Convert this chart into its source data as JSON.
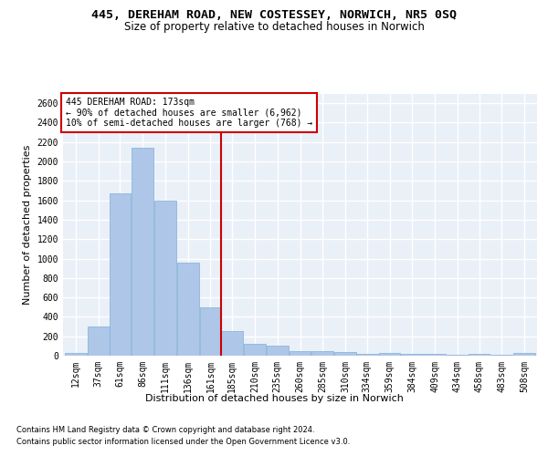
{
  "title1": "445, DEREHAM ROAD, NEW COSTESSEY, NORWICH, NR5 0SQ",
  "title2": "Size of property relative to detached houses in Norwich",
  "xlabel": "Distribution of detached houses by size in Norwich",
  "ylabel": "Number of detached properties",
  "footer1": "Contains HM Land Registry data © Crown copyright and database right 2024.",
  "footer2": "Contains public sector information licensed under the Open Government Licence v3.0.",
  "bin_labels": [
    "12sqm",
    "37sqm",
    "61sqm",
    "86sqm",
    "111sqm",
    "136sqm",
    "161sqm",
    "185sqm",
    "210sqm",
    "235sqm",
    "260sqm",
    "285sqm",
    "310sqm",
    "334sqm",
    "359sqm",
    "384sqm",
    "409sqm",
    "434sqm",
    "458sqm",
    "483sqm",
    "508sqm"
  ],
  "bar_values": [
    25,
    300,
    1670,
    2140,
    1600,
    960,
    500,
    250,
    125,
    100,
    50,
    50,
    35,
    20,
    30,
    15,
    20,
    5,
    20,
    5,
    25
  ],
  "bar_color": "#aec6e8",
  "bar_edge_color": "#7fafd4",
  "annotation_box_text": "445 DEREHAM ROAD: 173sqm\n← 90% of detached houses are smaller (6,962)\n10% of semi-detached houses are larger (768) →",
  "annotation_box_color": "#ffffff",
  "annotation_box_edge": "#cc0000",
  "vline_color": "#cc0000",
  "ylim": [
    0,
    2700
  ],
  "bg_color": "#eaf0f8",
  "grid_color": "#ffffff",
  "title1_fontsize": 9.5,
  "title2_fontsize": 8.5,
  "tick_fontsize": 7,
  "ylabel_fontsize": 8,
  "xlabel_fontsize": 8,
  "footer_fontsize": 6,
  "annotation_fontsize": 7
}
